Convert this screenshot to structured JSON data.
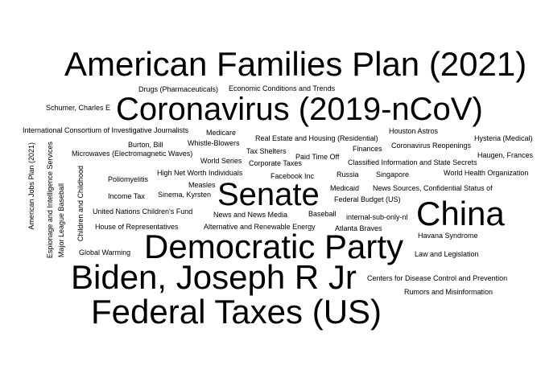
{
  "wordcloud": {
    "words": [
      "American Families Plan (2021)",
      "Coronavirus (2019-nCoV)",
      "Senate",
      "China",
      "Democratic Party",
      "Biden, Joseph R Jr",
      "Federal Taxes (US)",
      "Drugs (Pharmaceuticals)",
      "Economic Conditions and Trends",
      "Schumer, Charles E",
      "International Consortium of Investigative Journalists",
      "Medicare",
      "Real Estate and Housing (Residential)",
      "Houston Astros",
      "Hysteria (Medical)",
      "Burton, Bill",
      "Whistle-Blowers",
      "Tax Shelters",
      "Coronavirus Reopenings",
      "Finances",
      "Paid Time Off",
      "Microwaves (Electromagnetic Waves)",
      "Haugen, Frances",
      "World Series",
      "Corporate Taxes",
      "Classified Information and State Secrets",
      "High Net Worth Individuals",
      "Facebook Inc",
      "Russia",
      "Singapore",
      "World Health Organization",
      "Poliomyelitis",
      "Measles",
      "Medicaid",
      "News Sources, Confidential Status of",
      "Income Tax",
      "Sinema, Kyrsten",
      "Federal Budget (US)",
      "United Nations Children's Fund",
      "News and News Media",
      "Baseball",
      "internal-sub-only-nl",
      "House of Representatives",
      "Alternative and Renewable Energy",
      "Atlanta Braves",
      "Havana Syndrome",
      "Global Warming",
      "Law and Legislation",
      "Centers for Disease Control and Prevention",
      "Rumors and Misinformation",
      "American Jobs Plan (2021)",
      "Espionage and Intelligence Services",
      "Major League Baseball",
      "Children and Childhood"
    ]
  },
  "colors": {
    "background": "#ffffff",
    "text": "#000000"
  }
}
